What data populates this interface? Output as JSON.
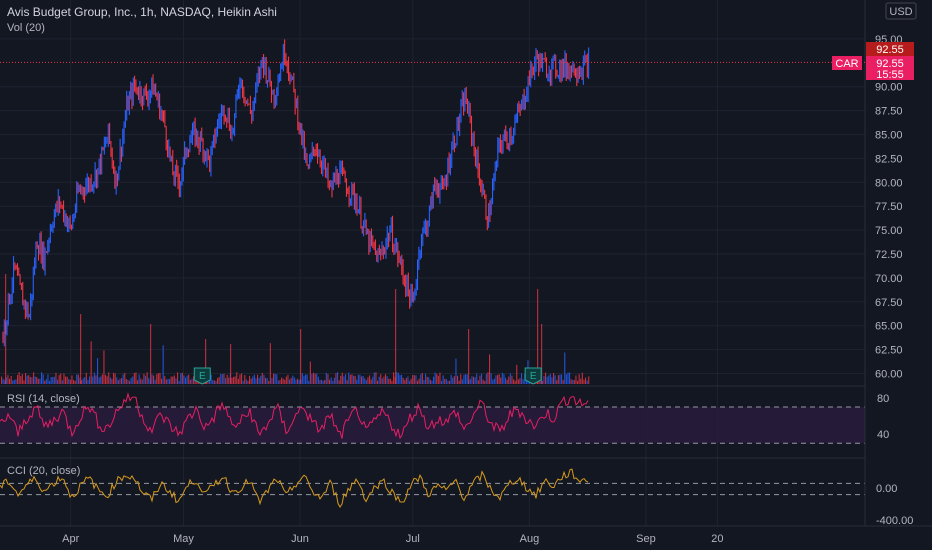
{
  "header": {
    "title": "Avis Budget Group, Inc., 1h, NASDAQ, Heikin Ashi",
    "volume_indicator": "Vol (20)",
    "currency_button": "USD"
  },
  "price_badges": {
    "last_price": "92.55",
    "symbol": "CAR",
    "symbol_price": "92.55",
    "countdown": "15:55"
  },
  "colors": {
    "background": "#131722",
    "grid": "#1f2330",
    "up": "#2962ff",
    "down": "#f23645",
    "rsi_line": "#e91e63",
    "rsi_band": "#2a1b3d",
    "cci_line": "#d89a1a",
    "badge_red": "#e91e63",
    "badge_dark_red": "#b71c1c"
  },
  "chart_data": [
    {
      "type": "line",
      "title": "Avis Budget Group, Inc., 1h, NASDAQ, Heikin Ashi",
      "ylim": [
        59,
        96
      ],
      "y_ticks": [
        "60.00",
        "62.50",
        "65.00",
        "67.50",
        "70.00",
        "72.50",
        "75.00",
        "77.50",
        "80.00",
        "82.50",
        "85.00",
        "87.50",
        "90.00",
        "95.00"
      ],
      "x_ticks": [
        "Apr",
        "May",
        "Jun",
        "Jul",
        "Aug",
        "Sep",
        "20"
      ],
      "x_tick_days": [
        18,
        48,
        79,
        109,
        140,
        171,
        190
      ],
      "earnings_markers": [
        {
          "label": "E",
          "day": 53
        },
        {
          "label": "E",
          "day": 141
        }
      ],
      "last_price": 92.55,
      "series": [
        {
          "name": "CAR",
          "x_days": [
            0,
            3,
            5,
            7,
            9,
            11,
            13,
            15,
            18,
            20,
            23,
            25,
            28,
            30,
            33,
            35,
            38,
            40,
            43,
            45,
            47,
            49,
            51,
            53,
            55,
            57,
            59,
            61,
            63,
            66,
            69,
            72,
            75,
            78,
            81,
            83,
            85,
            87,
            89,
            91,
            94,
            97,
            100,
            103,
            106,
            109,
            111,
            113,
            115,
            117,
            119,
            121,
            123,
            126,
            129,
            132,
            135,
            138,
            140,
            142,
            144,
            146,
            148,
            150,
            152,
            154,
            156
          ],
          "values": [
            64,
            71,
            68,
            66,
            74,
            72,
            76,
            78,
            75,
            79,
            80,
            81,
            85,
            80,
            88,
            90,
            89,
            90,
            86,
            81,
            80,
            84,
            85,
            84,
            82,
            86,
            88,
            85,
            91,
            87,
            93,
            89,
            94,
            88,
            81,
            84,
            82,
            79,
            81,
            80,
            78,
            74,
            72,
            75,
            71,
            67,
            74,
            76,
            80,
            79,
            83,
            86,
            89,
            82,
            76,
            84,
            85,
            88,
            91,
            93,
            92,
            92,
            92,
            92,
            92,
            92,
            92.55
          ]
        }
      ]
    },
    {
      "type": "line",
      "title": "RSI (14, close)",
      "ylim": [
        30,
        90
      ],
      "y_ticks": [
        "40",
        "80"
      ],
      "band": [
        30,
        70
      ],
      "series": [
        {
          "name": "RSI",
          "values": [
            50,
            62,
            40,
            58,
            70,
            48,
            55,
            66,
            42,
            60,
            72,
            52,
            46,
            64,
            78,
            82,
            58,
            44,
            62,
            50,
            40,
            56,
            68,
            46,
            60,
            74,
            48,
            54,
            66,
            38,
            52,
            70,
            44,
            58,
            72,
            50,
            46,
            62,
            36,
            54,
            68,
            40,
            56,
            64,
            48,
            38,
            60,
            70,
            46,
            58,
            52,
            66,
            44,
            62,
            74,
            50,
            42,
            60,
            68,
            56,
            48,
            64,
            58,
            76,
            82,
            72,
            78
          ]
        }
      ]
    },
    {
      "type": "line",
      "title": "CCI (20, close)",
      "ylim": [
        -400,
        300
      ],
      "y_ticks": [
        "0.00",
        "-400.00"
      ],
      "band": [
        -100,
        100
      ],
      "series": [
        {
          "name": "CCI",
          "values": [
            20,
            120,
            -80,
            60,
            150,
            -40,
            90,
            180,
            -120,
            40,
            160,
            -20,
            -100,
            110,
            200,
            170,
            -60,
            -150,
            80,
            -30,
            -180,
            50,
            140,
            -90,
            70,
            190,
            -50,
            30,
            120,
            -200,
            -20,
            160,
            -110,
            60,
            180,
            -40,
            -130,
            90,
            -220,
            -10,
            150,
            -160,
            40,
            110,
            -70,
            -190,
            60,
            170,
            -80,
            50,
            -30,
            130,
            -140,
            80,
            200,
            -20,
            -120,
            70,
            160,
            10,
            -90,
            120,
            40,
            190,
            230,
            110,
            150
          ]
        }
      ]
    }
  ]
}
